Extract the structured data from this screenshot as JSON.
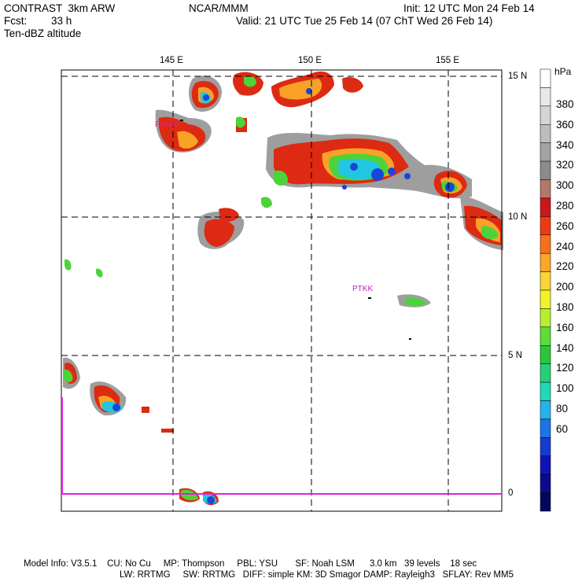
{
  "header": {
    "model": "CONTRAST  3km ARW",
    "fcst_label": "Fcst:",
    "fcst_value": "33 h",
    "field": "Ten-dBZ altitude",
    "center": "NCAR/MMM",
    "init": "Init: 12 UTC Mon 24 Feb 14",
    "valid": "Valid: 21 UTC Tue 25 Feb 14 (07 ChT Wed 26 Feb 14)"
  },
  "map": {
    "lon_labels": [
      "145 E",
      "150 E",
      "155 E"
    ],
    "lat_labels": [
      "15 N",
      "10 N",
      "5 N",
      "0"
    ],
    "stations": [
      "PGUM",
      "PTKK"
    ]
  },
  "colorbar": {
    "unit": "hPa",
    "labels": [
      "380",
      "360",
      "340",
      "320",
      "300",
      "280",
      "260",
      "240",
      "220",
      "200",
      "180",
      "160",
      "140",
      "120",
      "100",
      "80",
      "60"
    ],
    "colors": [
      "#ffffff",
      "#e8e8e8",
      "#d4d4d4",
      "#bdbdbd",
      "#a3a3a3",
      "#8c8c8c",
      "#b5776a",
      "#c81818",
      "#ee3a14",
      "#f7711a",
      "#fba628",
      "#fdd435",
      "#f2f22a",
      "#b6ef2e",
      "#5ddd38",
      "#2bc73a",
      "#26d07a",
      "#21d8b9",
      "#26b2ec",
      "#1976e4",
      "#143cd0",
      "#0e14b6",
      "#0a0a8e",
      "#05055e"
    ]
  },
  "footer": {
    "line1": "Model Info: V3.5.1    CU: No Cu     MP: Thompson     PBL: YSU       SF: Noah LSM      3.0 km   39 levels    18 sec",
    "line2": "LW: RRTMG     SW: RRTMG   DIFF: simple KM: 3D Smagor DAMP: Rayleigh3   SFLAY: Rev MM5"
  }
}
